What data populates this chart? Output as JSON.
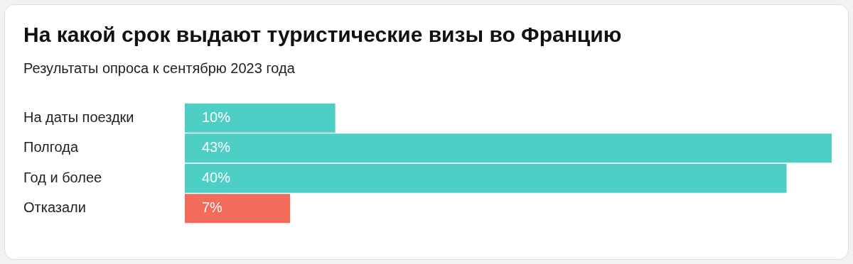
{
  "chart_data": {
    "type": "bar",
    "orientation": "horizontal",
    "title": "На какой срок выдают туристические визы во Францию",
    "subtitle": "Результаты опроса к сентябрю 2023 года",
    "categories": [
      "На даты поездки",
      "Полгода",
      "Год и более",
      "Отказали"
    ],
    "values": [
      10,
      43,
      40,
      7
    ],
    "colors": [
      "#4ecfc6",
      "#4ecfc6",
      "#4ecfc6",
      "#f36b5a"
    ],
    "value_labels": [
      "10%",
      "43%",
      "40%",
      "7%"
    ],
    "xlim": [
      0,
      43
    ],
    "legend": false,
    "tick_labels": "y"
  }
}
